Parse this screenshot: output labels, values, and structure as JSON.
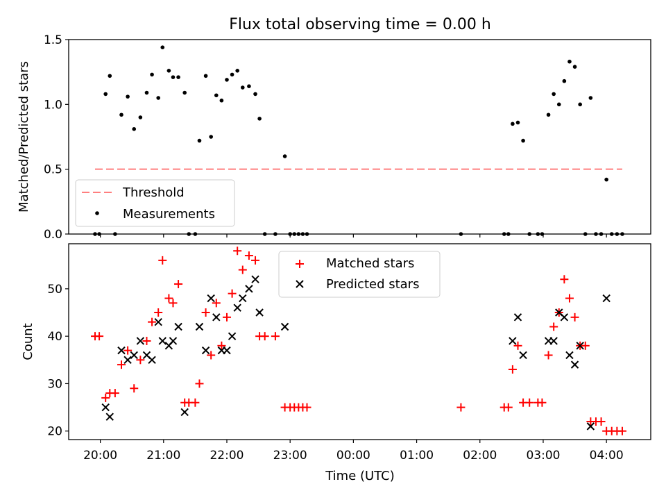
{
  "figure": {
    "title": "Flux total observing time = 0.00 h"
  },
  "chart_data": [
    {
      "type": "scatter",
      "ylabel": "Matched/Predicted stars",
      "xlabel": "",
      "ylim": [
        0,
        1.5
      ],
      "xlim_hours": [
        19.5,
        28.7
      ],
      "yticks": [
        "0.0",
        "0.5",
        "1.0",
        "1.5"
      ],
      "grid": false,
      "legend_position": "lower-left",
      "legend": [
        "Threshold",
        "Measurements"
      ],
      "threshold": {
        "name": "Threshold",
        "value": 0.5,
        "x_start": "19:55",
        "x_end": "04:15",
        "color": "#ff7f7f",
        "style": "dashed"
      },
      "series": [
        {
          "name": "Measurements",
          "color": "#000000",
          "marker": "dot",
          "points": [
            [
              "19:55",
              0.0
            ],
            [
              "19:59",
              0.0
            ],
            [
              "20:05",
              1.08
            ],
            [
              "20:09",
              1.22
            ],
            [
              "20:14",
              0.0
            ],
            [
              "20:20",
              0.92
            ],
            [
              "20:26",
              1.06
            ],
            [
              "20:32",
              0.81
            ],
            [
              "20:38",
              0.9
            ],
            [
              "20:44",
              1.09
            ],
            [
              "20:49",
              1.23
            ],
            [
              "20:55",
              1.05
            ],
            [
              "20:59",
              1.44
            ],
            [
              "21:05",
              1.26
            ],
            [
              "21:09",
              1.21
            ],
            [
              "21:14",
              1.21
            ],
            [
              "21:20",
              1.09
            ],
            [
              "21:24",
              0.0
            ],
            [
              "21:30",
              0.0
            ],
            [
              "21:34",
              0.72
            ],
            [
              "21:40",
              1.22
            ],
            [
              "21:45",
              0.75
            ],
            [
              "21:50",
              1.07
            ],
            [
              "21:55",
              1.03
            ],
            [
              "22:00",
              1.19
            ],
            [
              "22:05",
              1.23
            ],
            [
              "22:10",
              1.26
            ],
            [
              "22:15",
              1.13
            ],
            [
              "22:21",
              1.14
            ],
            [
              "22:27",
              1.08
            ],
            [
              "22:31",
              0.89
            ],
            [
              "22:36",
              0.0
            ],
            [
              "22:46",
              0.0
            ],
            [
              "22:55",
              0.6
            ],
            [
              "23:00",
              0.0
            ],
            [
              "23:04",
              0.0
            ],
            [
              "23:08",
              0.0
            ],
            [
              "23:12",
              0.0
            ],
            [
              "23:16",
              0.0
            ],
            [
              "01:42",
              0.0
            ],
            [
              "02:23",
              0.0
            ],
            [
              "02:27",
              0.0
            ],
            [
              "02:31",
              0.85
            ],
            [
              "02:36",
              0.86
            ],
            [
              "02:41",
              0.72
            ],
            [
              "02:47",
              0.0
            ],
            [
              "02:55",
              0.0
            ],
            [
              "02:59",
              0.0
            ],
            [
              "03:05",
              0.92
            ],
            [
              "03:10",
              1.08
            ],
            [
              "03:15",
              1.0
            ],
            [
              "03:20",
              1.18
            ],
            [
              "03:25",
              1.33
            ],
            [
              "03:30",
              1.29
            ],
            [
              "03:35",
              1.0
            ],
            [
              "03:40",
              0.0
            ],
            [
              "03:45",
              1.05
            ],
            [
              "03:50",
              0.0
            ],
            [
              "03:55",
              0.0
            ],
            [
              "04:00",
              0.42
            ],
            [
              "04:05",
              0.0
            ],
            [
              "04:10",
              0.0
            ],
            [
              "04:15",
              0.0
            ]
          ]
        }
      ]
    },
    {
      "type": "scatter",
      "ylabel": "Count",
      "xlabel": "Time (UTC)",
      "ylim": [
        18.2,
        59.5
      ],
      "xlim_hours": [
        19.5,
        28.7
      ],
      "yticks": [
        "20",
        "30",
        "40",
        "50"
      ],
      "xticks": [
        "20:00",
        "21:00",
        "22:00",
        "23:00",
        "00:00",
        "01:00",
        "02:00",
        "03:00",
        "04:00"
      ],
      "grid": false,
      "legend_position": "upper-center",
      "legend": [
        "Matched stars",
        "Predicted stars"
      ],
      "series": [
        {
          "name": "Matched stars",
          "color": "#ff0000",
          "marker": "plus",
          "points": [
            [
              "19:55",
              40
            ],
            [
              "19:59",
              40
            ],
            [
              "20:05",
              27
            ],
            [
              "20:09",
              28
            ],
            [
              "20:14",
              28
            ],
            [
              "20:20",
              34
            ],
            [
              "20:26",
              37
            ],
            [
              "20:32",
              29
            ],
            [
              "20:38",
              35
            ],
            [
              "20:44",
              39
            ],
            [
              "20:49",
              43
            ],
            [
              "20:55",
              45
            ],
            [
              "20:59",
              56
            ],
            [
              "21:05",
              48
            ],
            [
              "21:09",
              47
            ],
            [
              "21:14",
              51
            ],
            [
              "21:20",
              26
            ],
            [
              "21:24",
              26
            ],
            [
              "21:30",
              26
            ],
            [
              "21:34",
              30
            ],
            [
              "21:40",
              45
            ],
            [
              "21:45",
              36
            ],
            [
              "21:50",
              47
            ],
            [
              "21:55",
              38
            ],
            [
              "22:00",
              44
            ],
            [
              "22:05",
              49
            ],
            [
              "22:10",
              58
            ],
            [
              "22:15",
              54
            ],
            [
              "22:21",
              57
            ],
            [
              "22:27",
              56
            ],
            [
              "22:31",
              40
            ],
            [
              "22:36",
              40
            ],
            [
              "22:46",
              40
            ],
            [
              "22:55",
              25
            ],
            [
              "23:00",
              25
            ],
            [
              "23:04",
              25
            ],
            [
              "23:08",
              25
            ],
            [
              "23:12",
              25
            ],
            [
              "23:16",
              25
            ],
            [
              "01:42",
              25
            ],
            [
              "02:23",
              25
            ],
            [
              "02:27",
              25
            ],
            [
              "02:31",
              33
            ],
            [
              "02:36",
              38
            ],
            [
              "02:41",
              26
            ],
            [
              "02:47",
              26
            ],
            [
              "02:55",
              26
            ],
            [
              "02:59",
              26
            ],
            [
              "03:05",
              36
            ],
            [
              "03:10",
              42
            ],
            [
              "03:15",
              45
            ],
            [
              "03:20",
              52
            ],
            [
              "03:25",
              48
            ],
            [
              "03:30",
              44
            ],
            [
              "03:35",
              38
            ],
            [
              "03:40",
              38
            ],
            [
              "03:45",
              22
            ],
            [
              "03:50",
              22
            ],
            [
              "03:55",
              22
            ],
            [
              "04:00",
              20
            ],
            [
              "04:05",
              20
            ],
            [
              "04:10",
              20
            ],
            [
              "04:15",
              20
            ]
          ]
        },
        {
          "name": "Predicted stars",
          "color": "#000000",
          "marker": "x",
          "points": [
            [
              "20:05",
              25
            ],
            [
              "20:09",
              23
            ],
            [
              "20:20",
              37
            ],
            [
              "20:26",
              35
            ],
            [
              "20:32",
              36
            ],
            [
              "20:38",
              39
            ],
            [
              "20:44",
              36
            ],
            [
              "20:49",
              35
            ],
            [
              "20:55",
              43
            ],
            [
              "20:59",
              39
            ],
            [
              "21:05",
              38
            ],
            [
              "21:09",
              39
            ],
            [
              "21:14",
              42
            ],
            [
              "21:20",
              24
            ],
            [
              "21:34",
              42
            ],
            [
              "21:40",
              37
            ],
            [
              "21:45",
              48
            ],
            [
              "21:50",
              44
            ],
            [
              "21:55",
              37
            ],
            [
              "22:00",
              37
            ],
            [
              "22:05",
              40
            ],
            [
              "22:10",
              46
            ],
            [
              "22:15",
              48
            ],
            [
              "22:21",
              50
            ],
            [
              "22:27",
              52
            ],
            [
              "22:31",
              45
            ],
            [
              "22:55",
              42
            ],
            [
              "02:31",
              39
            ],
            [
              "02:36",
              44
            ],
            [
              "02:41",
              36
            ],
            [
              "03:05",
              39
            ],
            [
              "03:10",
              39
            ],
            [
              "03:15",
              45
            ],
            [
              "03:20",
              44
            ],
            [
              "03:25",
              36
            ],
            [
              "03:30",
              34
            ],
            [
              "03:35",
              38
            ],
            [
              "03:45",
              21
            ],
            [
              "04:00",
              48
            ]
          ]
        }
      ]
    }
  ]
}
